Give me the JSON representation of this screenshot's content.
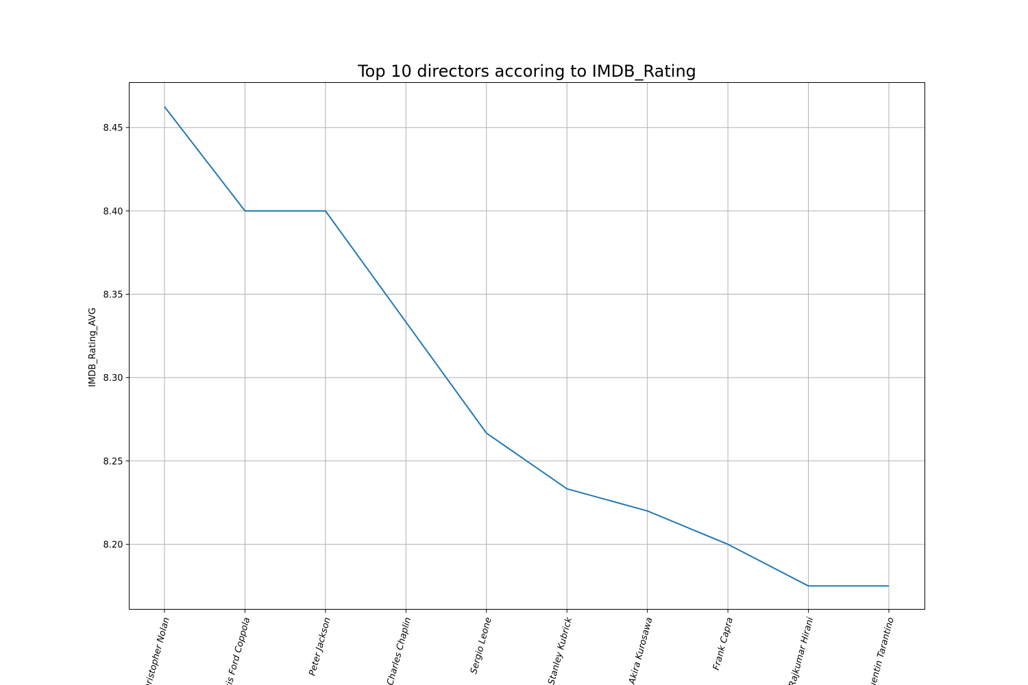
{
  "chart_data": {
    "type": "line",
    "title": "Top 10 directors accoring to IMDB_Rating",
    "xlabel": "",
    "ylabel": "IMDB_Rating_AVG",
    "categories": [
      "Christopher Nolan",
      "Francis Ford Coppola",
      "Peter Jackson",
      "Charles Chaplin",
      "Sergio Leone",
      "Stanley Kubrick",
      "Akira Kurosawa",
      "Frank Capra",
      "Rajkumar Hirani",
      "Quentin Tarantino"
    ],
    "series": [
      {
        "values": [
          8.4625,
          8.4,
          8.4,
          8.3333,
          8.2667,
          8.2333,
          8.22,
          8.2,
          8.175,
          8.175
        ],
        "color": "#1f77b4"
      }
    ],
    "ylim": [
      8.161,
      8.477
    ],
    "yticks": [
      "8.20",
      "8.25",
      "8.30",
      "8.35",
      "8.40",
      "8.45"
    ],
    "grid": true,
    "legend": "none"
  }
}
